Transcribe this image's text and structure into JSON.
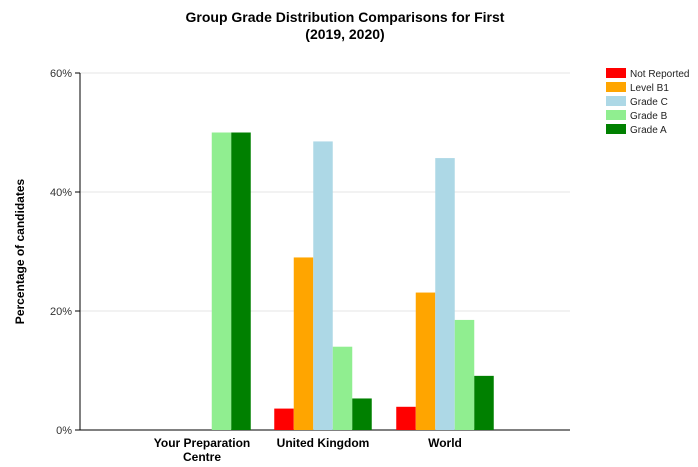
{
  "chart_data": {
    "type": "bar",
    "title": [
      "Group Grade Distribution Comparisons for First",
      "(2019, 2020)"
    ],
    "ylabel": "Percentage of candidates",
    "xlabel": "",
    "ylim": [
      0,
      60
    ],
    "yticks": [
      0,
      20,
      40,
      60
    ],
    "ytick_labels": [
      "0%",
      "20%",
      "40%",
      "60%"
    ],
    "grid": true,
    "legend_position": "top-right",
    "categories": [
      [
        "Your Preparation",
        "Centre"
      ],
      [
        "United Kingdom"
      ],
      [
        "World"
      ]
    ],
    "series": [
      {
        "name": "Not Reported",
        "color": "#ff0000",
        "values": [
          0,
          3.6,
          3.9
        ]
      },
      {
        "name": "Level B1",
        "color": "#ffa500",
        "values": [
          0,
          29.0,
          23.1
        ]
      },
      {
        "name": "Grade C",
        "color": "#add8e6",
        "values": [
          0,
          48.5,
          45.7
        ]
      },
      {
        "name": "Grade B",
        "color": "#90ee90",
        "values": [
          50.0,
          14.0,
          18.5
        ]
      },
      {
        "name": "Grade A",
        "color": "#008000",
        "values": [
          50.0,
          5.3,
          9.1
        ]
      }
    ]
  }
}
